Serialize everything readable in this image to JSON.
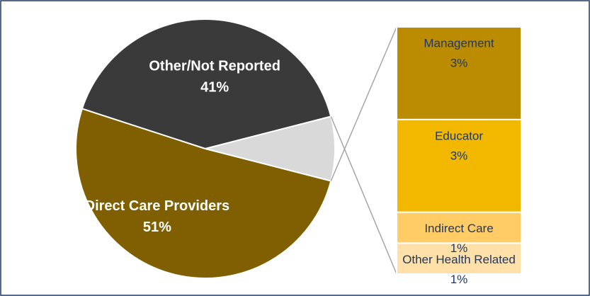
{
  "chart_data": [
    {
      "type": "pie",
      "categories": [
        "Direct Care Providers",
        "Other/Not Reported",
        null
      ],
      "values": [
        51,
        41,
        8
      ],
      "value_labels": [
        "51%",
        "41%",
        null
      ],
      "colors": [
        "#7f5f00",
        "#3a3a3a",
        "#d9d9d9"
      ]
    },
    {
      "type": "bar",
      "categories": [
        "Management",
        "Educator",
        "Indirect Care",
        "Other Health Related"
      ],
      "values": [
        3,
        3,
        1,
        1
      ],
      "value_labels": [
        "3%",
        "3%",
        "1%",
        "1%"
      ],
      "colors": [
        "#bb8c00",
        "#f2b800",
        "#ffcc66",
        "#ffe0a8"
      ]
    }
  ]
}
